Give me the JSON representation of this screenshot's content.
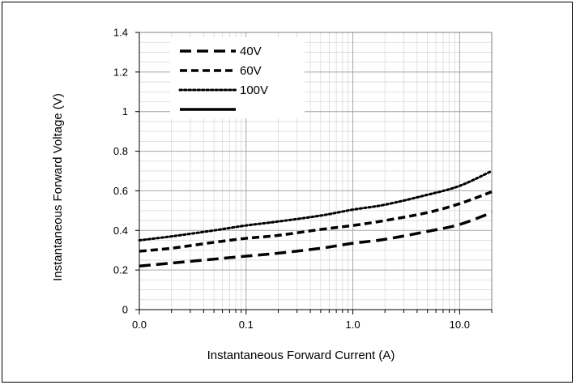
{
  "chart_data": {
    "type": "line",
    "title": "",
    "xlabel": "Instantaneous Forward Current (A)",
    "ylabel": "Instantaneous Forward Voltage (V)",
    "x_scale": "log",
    "xlim": [
      0.01,
      20
    ],
    "ylim": [
      0,
      1.4
    ],
    "x_ticks": [
      {
        "value": 0.01,
        "label": "0.0"
      },
      {
        "value": 0.1,
        "label": "0.1"
      },
      {
        "value": 1,
        "label": "1.0"
      },
      {
        "value": 10,
        "label": "10.0"
      }
    ],
    "y_ticks": [
      {
        "value": 0,
        "label": "0"
      },
      {
        "value": 0.2,
        "label": "0.2"
      },
      {
        "value": 0.4,
        "label": "0.4"
      },
      {
        "value": 0.6,
        "label": "0.6"
      },
      {
        "value": 0.8,
        "label": "0.8"
      },
      {
        "value": 1,
        "label": "1"
      },
      {
        "value": 1.2,
        "label": "1.2"
      },
      {
        "value": 1.4,
        "label": "1.4"
      }
    ],
    "grid": true,
    "legend_position": "top-left",
    "series": [
      {
        "name": "40V",
        "style": "long-dash",
        "color": "#000000",
        "x": [
          0.01,
          0.02,
          0.05,
          0.1,
          0.2,
          0.5,
          1,
          2,
          5,
          10,
          20
        ],
        "y": [
          0.22,
          0.235,
          0.255,
          0.27,
          0.285,
          0.31,
          0.335,
          0.355,
          0.395,
          0.43,
          0.49
        ]
      },
      {
        "name": "60V",
        "style": "dash",
        "color": "#000000",
        "x": [
          0.01,
          0.02,
          0.05,
          0.1,
          0.2,
          0.5,
          1,
          2,
          5,
          10,
          20
        ],
        "y": [
          0.295,
          0.31,
          0.34,
          0.36,
          0.375,
          0.405,
          0.425,
          0.45,
          0.49,
          0.535,
          0.595
        ]
      },
      {
        "name": "100V",
        "style": "dot",
        "color": "#000000",
        "x": [
          0.01,
          0.02,
          0.05,
          0.1,
          0.2,
          0.5,
          1,
          2,
          5,
          10,
          20
        ],
        "y": [
          0.35,
          0.37,
          0.4,
          0.425,
          0.445,
          0.475,
          0.505,
          0.53,
          0.58,
          0.625,
          0.7
        ]
      },
      {
        "name": "",
        "style": "solid",
        "color": "#000000",
        "x": [],
        "y": []
      }
    ]
  }
}
